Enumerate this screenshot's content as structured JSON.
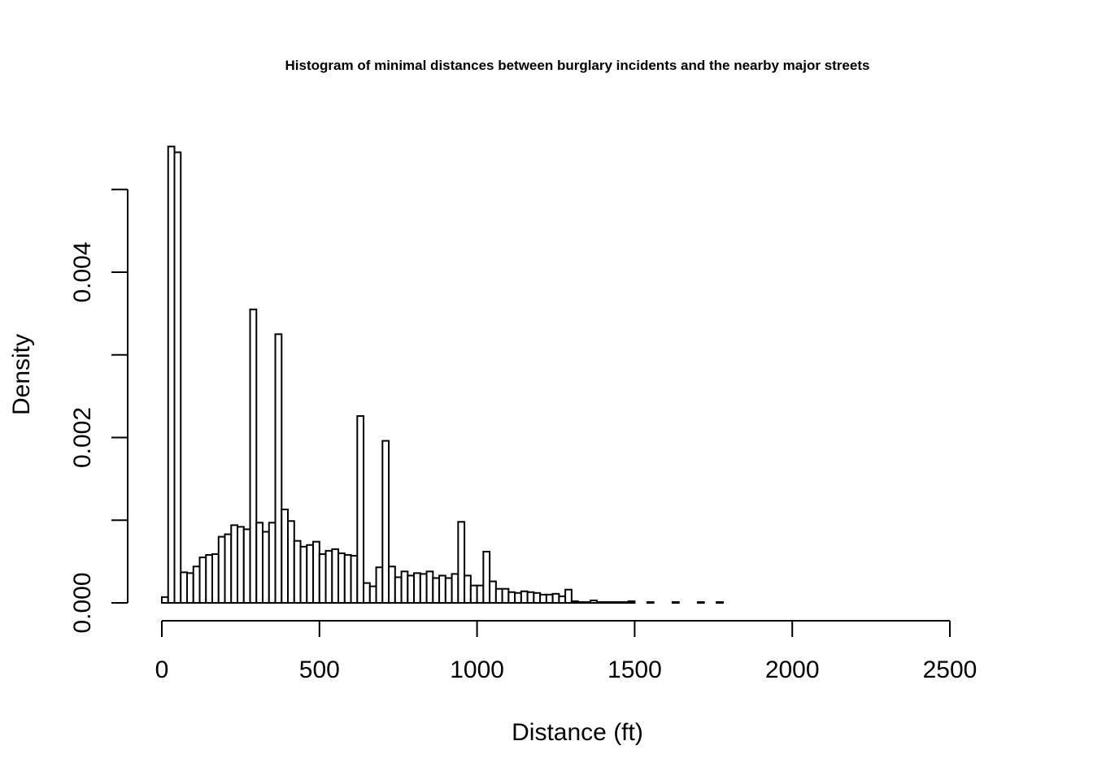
{
  "chart_data": {
    "type": "bar",
    "title": "Histogram of minimal distances between burglary incidents and the nearby major streets",
    "xlabel": "Distance (ft)",
    "ylabel": "Density",
    "xlim": [
      0,
      2640
    ],
    "ylim": [
      0,
      0.0055
    ],
    "x_ticks": [
      0,
      500,
      1000,
      1500,
      2000,
      2500
    ],
    "x_tick_labels": [
      "0",
      "500",
      "1000",
      "1500",
      "2000",
      "2500"
    ],
    "y_ticks": [
      0,
      0.001,
      0.002,
      0.003,
      0.004,
      0.005
    ],
    "y_tick_labels": [
      "0.000",
      "",
      "0.002",
      "",
      "0.004",
      ""
    ],
    "bin_width": 20,
    "bin_start": 0,
    "values": [
      7e-05,
      0.00552,
      0.00545,
      0.00037,
      0.00036,
      0.00044,
      0.00055,
      0.00058,
      0.00059,
      0.0008,
      0.00083,
      0.00094,
      0.00092,
      0.00089,
      0.00355,
      0.00097,
      0.00086,
      0.00097,
      0.00325,
      0.00113,
      0.00099,
      0.00075,
      0.00068,
      0.0007,
      0.00074,
      0.00059,
      0.00063,
      0.00065,
      0.0006,
      0.00058,
      0.00057,
      0.00226,
      0.00024,
      0.0002,
      0.00043,
      0.00196,
      0.00044,
      0.00031,
      0.00038,
      0.00033,
      0.00036,
      0.00035,
      0.00038,
      0.0003,
      0.00033,
      0.0003,
      0.00035,
      0.00098,
      0.00033,
      0.00021,
      0.00021,
      0.00062,
      0.00026,
      0.00017,
      0.00017,
      0.00013,
      0.00012,
      0.00014,
      0.00013,
      0.00012,
      0.0001,
      0.0001,
      0.00011,
      8e-05,
      0.00016,
      2e-05,
      1e-05,
      1e-05,
      3e-05,
      1e-05,
      1e-05,
      1e-05,
      1e-05,
      1e-05,
      2e-05,
      0.0,
      0.0,
      1e-05,
      0.0,
      0.0,
      0.0,
      1e-05,
      0.0,
      0.0,
      0.0,
      1e-05,
      0.0,
      0.0,
      1e-05,
      0.0,
      0.0,
      0.0,
      0.0,
      0.0,
      0.0,
      0.0,
      0.0,
      0.0,
      0.0,
      0.0,
      0.0,
      0.0,
      0.0,
      0.0,
      0.0,
      0.0,
      0.0,
      0.0,
      0.0,
      0.0,
      0.0,
      0.0,
      0.0,
      0.0,
      0.0,
      0.0,
      0.0,
      0.0,
      0.0,
      0.0,
      0.0,
      0.0,
      0.0,
      0.0,
      0.0,
      0.0,
      0.0,
      0.0,
      0.0,
      0.0,
      0.0,
      0.0
    ],
    "grid": false,
    "legend": "none",
    "colors": {
      "bar_fill": "#ffffff",
      "bar_stroke": "#000000"
    }
  }
}
